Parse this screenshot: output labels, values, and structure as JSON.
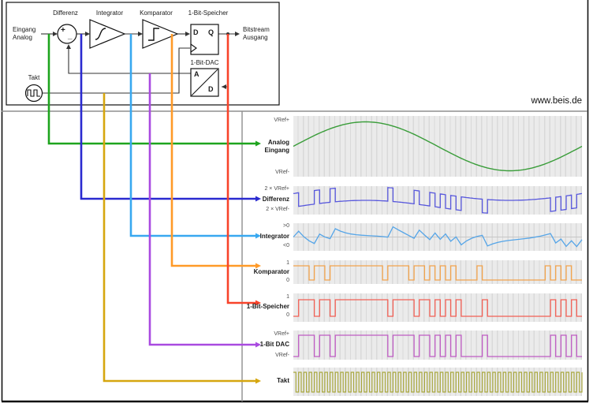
{
  "watermark": "www.beis.de",
  "block_diagram": {
    "input_label_1": "Eingang",
    "input_label_2": "Analog",
    "sum_label": "Differenz",
    "sum_plus": "+",
    "sum_minus": "_",
    "integrator_label": "Integrator",
    "comparator_label": "Komparator",
    "latch_label": "1-Bit-Speicher",
    "latch_d": "D",
    "latch_q": "Q",
    "dac_label": "1-Bit-DAC",
    "dac_a": "A",
    "dac_d": "D",
    "clock_label": "Takt",
    "output_label_1": "Bitstream",
    "output_label_2": "Ausgang"
  },
  "waveforms": {
    "clock_periods": 55,
    "sine_amplitude": 1.0,
    "bitstream": [
      0,
      1,
      1,
      1,
      0,
      1,
      1,
      0,
      1,
      1,
      1,
      1,
      1,
      1,
      1,
      1,
      1,
      1,
      0,
      1,
      1,
      1,
      1,
      0,
      1,
      1,
      0,
      1,
      0,
      1,
      0,
      1,
      0,
      0,
      0,
      0,
      1,
      0,
      0,
      0,
      0,
      0,
      0,
      0,
      0,
      0,
      0,
      0,
      0,
      1,
      0,
      1,
      0,
      1,
      0
    ],
    "rows": [
      {
        "id": "analog-eingang",
        "label1": "Analog",
        "label2": "Eingang",
        "tick_top": "VRef+",
        "tick_bottom": "VRef-",
        "color": "#3a9d3a",
        "type": "sine"
      },
      {
        "id": "differenz",
        "label1": "Differenz",
        "tick_top": "2 × VRef+",
        "tick_bottom": "2 × VRef-",
        "color": "#5858dd",
        "type": "difference"
      },
      {
        "id": "integrator",
        "label1": "Integrator",
        "tick_top": ">0",
        "tick_bottom": "<0",
        "color": "#55a5e8",
        "type": "integral"
      },
      {
        "id": "komparator",
        "label1": "Komparator",
        "tick_top": "1",
        "tick_bottom": "0",
        "color": "#f2a34c",
        "type": "bits_next"
      },
      {
        "id": "speicher",
        "label1": "1-Bit-Speicher",
        "tick_top": "1",
        "tick_bottom": "0",
        "color": "#f26055",
        "type": "bits"
      },
      {
        "id": "dac",
        "label1": "1-Bit DAC",
        "tick_top": "VRef+",
        "tick_bottom": "VRef-",
        "color": "#bf5cc4",
        "type": "bits"
      },
      {
        "id": "takt",
        "label1": "Takt",
        "tick_top": "",
        "tick_bottom": "",
        "color": "#a8a73c",
        "type": "clock"
      }
    ]
  },
  "wire_colors": {
    "analog": "#1ea41e",
    "differenz": "#2a2ad0",
    "integrator": "#38a8f0",
    "komparator": "#ff9a28",
    "speicher": "#f8432a",
    "dac": "#a94ae0",
    "takt": "#d6a60e"
  }
}
